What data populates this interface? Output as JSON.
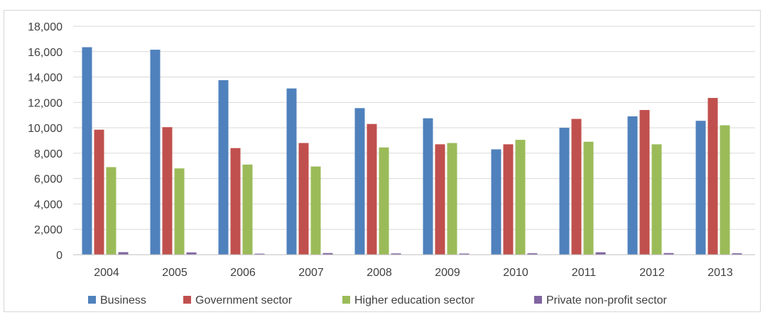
{
  "chart_data": {
    "type": "bar",
    "title": "",
    "xlabel": "",
    "ylabel": "",
    "categories": [
      "2004",
      "2005",
      "2006",
      "2007",
      "2008",
      "2009",
      "2010",
      "2011",
      "2012",
      "2013"
    ],
    "ylim": [
      0,
      18000
    ],
    "yticks": [
      0,
      2000,
      4000,
      6000,
      8000,
      10000,
      12000,
      14000,
      16000,
      18000
    ],
    "ytick_labels": [
      "0",
      "2,000",
      "4,000",
      "6,000",
      "8,000",
      "10,000",
      "12,000",
      "14,000",
      "16,000",
      "18,000"
    ],
    "grid": true,
    "legend_position": "bottom",
    "series": [
      {
        "name": "Business",
        "color": "#4f81bd",
        "values": [
          16350,
          16150,
          13750,
          13100,
          11550,
          10750,
          8300,
          10000,
          10900,
          10550
        ]
      },
      {
        "name": "Government sector",
        "color": "#c0504d",
        "values": [
          9850,
          10050,
          8400,
          8800,
          10300,
          8700,
          8700,
          10700,
          11400,
          12350
        ]
      },
      {
        "name": "Higher education sector",
        "color": "#9bbb59",
        "values": [
          6900,
          6800,
          7100,
          6950,
          8450,
          8800,
          9050,
          8900,
          8700,
          10200
        ]
      },
      {
        "name": "Private non-profit sector",
        "color": "#8064a2",
        "values": [
          200,
          180,
          80,
          130,
          100,
          90,
          110,
          190,
          130,
          110
        ]
      }
    ]
  }
}
